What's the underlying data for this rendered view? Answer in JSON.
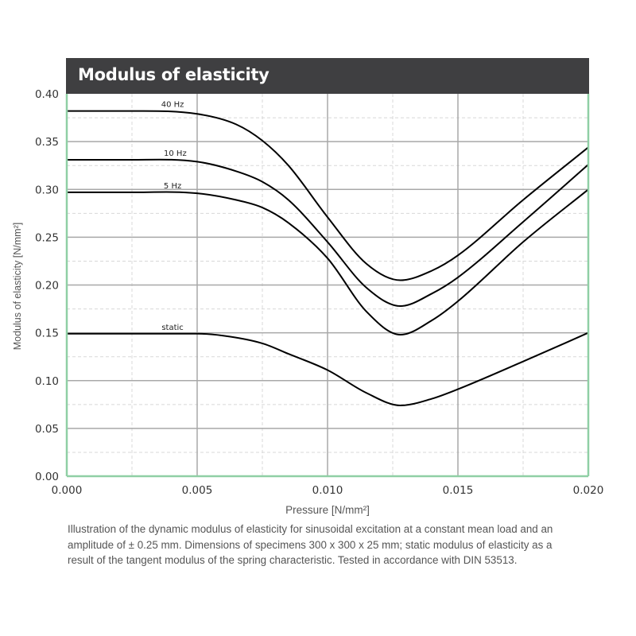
{
  "chart_data": {
    "type": "line",
    "title": "Modulus of elasticity",
    "xlabel": "Pressure [N/mm²]",
    "ylabel": "Modulus of elasticity   [N/mm²]",
    "xlim": [
      0.0,
      0.02
    ],
    "ylim": [
      0.0,
      0.4
    ],
    "x_ticks": [
      "0.000",
      "0.005",
      "0.010",
      "0.015",
      "0.020"
    ],
    "y_ticks": [
      "0.00",
      "0.05",
      "0.10",
      "0.15",
      "0.20",
      "0.25",
      "0.30",
      "0.35",
      "0.40"
    ],
    "grid": true,
    "series": [
      {
        "name": "40 Hz",
        "x": [
          0.0,
          0.0025,
          0.005,
          0.0065,
          0.0075,
          0.0085,
          0.01,
          0.0115,
          0.0128,
          0.014,
          0.015,
          0.0175,
          0.02
        ],
        "y": [
          0.382,
          0.382,
          0.379,
          0.368,
          0.351,
          0.325,
          0.271,
          0.222,
          0.205,
          0.215,
          0.231,
          0.289,
          0.344
        ]
      },
      {
        "name": "10 Hz",
        "x": [
          0.0,
          0.0025,
          0.005,
          0.0065,
          0.0075,
          0.0085,
          0.01,
          0.0115,
          0.0128,
          0.014,
          0.015,
          0.0175,
          0.02
        ],
        "y": [
          0.331,
          0.331,
          0.329,
          0.319,
          0.308,
          0.289,
          0.245,
          0.197,
          0.178,
          0.191,
          0.208,
          0.266,
          0.326
        ]
      },
      {
        "name": "5 Hz",
        "x": [
          0.0,
          0.0025,
          0.005,
          0.0065,
          0.0075,
          0.0085,
          0.01,
          0.0115,
          0.0128,
          0.014,
          0.015,
          0.0175,
          0.02
        ],
        "y": [
          0.297,
          0.297,
          0.296,
          0.289,
          0.281,
          0.265,
          0.228,
          0.172,
          0.148,
          0.163,
          0.183,
          0.245,
          0.3
        ]
      },
      {
        "name": "static",
        "x": [
          0.0,
          0.0025,
          0.005,
          0.006,
          0.0075,
          0.0085,
          0.01,
          0.0115,
          0.0128,
          0.014,
          0.015,
          0.0175,
          0.02
        ],
        "y": [
          0.149,
          0.149,
          0.149,
          0.147,
          0.139,
          0.128,
          0.111,
          0.087,
          0.074,
          0.081,
          0.091,
          0.12,
          0.15
        ]
      }
    ],
    "curve_labels": [
      {
        "name": "40 Hz",
        "at_x": 0.0036,
        "at_y": 0.382
      },
      {
        "name": "10 Hz",
        "at_x": 0.0037,
        "at_y": 0.331
      },
      {
        "name": "5 Hz",
        "at_x": 0.0036,
        "at_y": 0.297
      },
      {
        "name": "static",
        "at_x": 0.0036,
        "at_y": 0.149
      }
    ],
    "caption": "Illustration of the dynamic modulus of elasticity for sinusoidal excitation at a constant mean load and an amplitude of ± 0.25 mm. Dimensions of specimens 300 x 300 x 25 mm; static modulus of elasticity as a result of the tangent modulus of the spring characteristic. Tested in accordance with DIN 53513."
  },
  "colors": {
    "title_bar": "#3f3f41",
    "frame": "#8fcfa5",
    "major_grid": "#a8a8a8",
    "minor_grid": "#d8d8d8",
    "curve": "#000000",
    "text": "#555555"
  }
}
